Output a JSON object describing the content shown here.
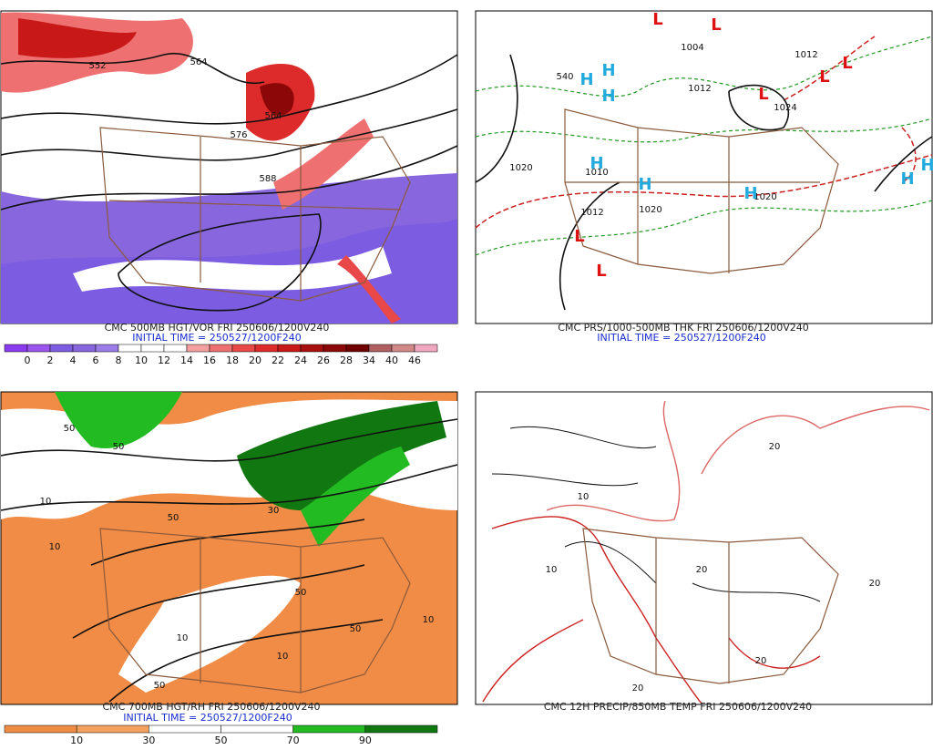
{
  "panels": [
    {
      "caption": "CMC 500MB HGT/VOR FRI 250606/1200V240",
      "initial_time": "INITIAL TIME = 250527/1200F240",
      "colorbar": {
        "labels": [
          "0",
          "2",
          "4",
          "6",
          "8",
          "10",
          "12",
          "14",
          "16",
          "18",
          "20",
          "22",
          "24",
          "26",
          "28",
          "34",
          "40",
          "46"
        ],
        "colors": [
          "#8c3cf0",
          "#9a55ee",
          "#7c5ce0",
          "#8866dd",
          "#9b7de8",
          "#ffffff",
          "#ffffff",
          "#ffffff",
          "#f4a0a0",
          "#ee7070",
          "#e84848",
          "#dd2a2a",
          "#c81818",
          "#a81010",
          "#8c0808",
          "#700000",
          "#b06060",
          "#d08888",
          "#f0a8c0"
        ]
      },
      "contour_labels": [
        "552",
        "564",
        "576",
        "588",
        "564"
      ]
    },
    {
      "caption": "CMC PRS/1000-500MB THK FRI 250606/1200V240",
      "initial_time": "INITIAL TIME = 250527/1200F240",
      "contour_labels": [
        "540",
        "1004",
        "1012",
        "1012",
        "1020",
        "1010",
        "1012",
        "1020",
        "1020",
        "1024"
      ],
      "pressure_centers": [
        "L",
        "L",
        "L",
        "L",
        "L",
        "L",
        "L",
        "H",
        "H",
        "H",
        "H",
        "H",
        "H",
        "H",
        "H"
      ]
    },
    {
      "caption": "CMC 700MB HGT/RH FRI 250606/1200V240",
      "initial_time": "INITIAL TIME = 250527/1200F240",
      "colorbar": {
        "labels": [
          "10",
          "30",
          "50",
          "70",
          "90"
        ],
        "colors": [
          "#f08c46",
          "#f5a060",
          "#ffffff",
          "#ffffff",
          "#22bb22",
          "#117711"
        ]
      },
      "contour_labels": [
        "50",
        "50",
        "10",
        "10",
        "50",
        "30",
        "10",
        "50",
        "10",
        "50",
        "10",
        "50"
      ]
    },
    {
      "caption": "CMC 12H PRECIP/850MB TEMP FRI 250606/1200V240",
      "contour_labels": [
        "10",
        "20",
        "20",
        "20",
        "20",
        "10",
        "20"
      ]
    }
  ]
}
